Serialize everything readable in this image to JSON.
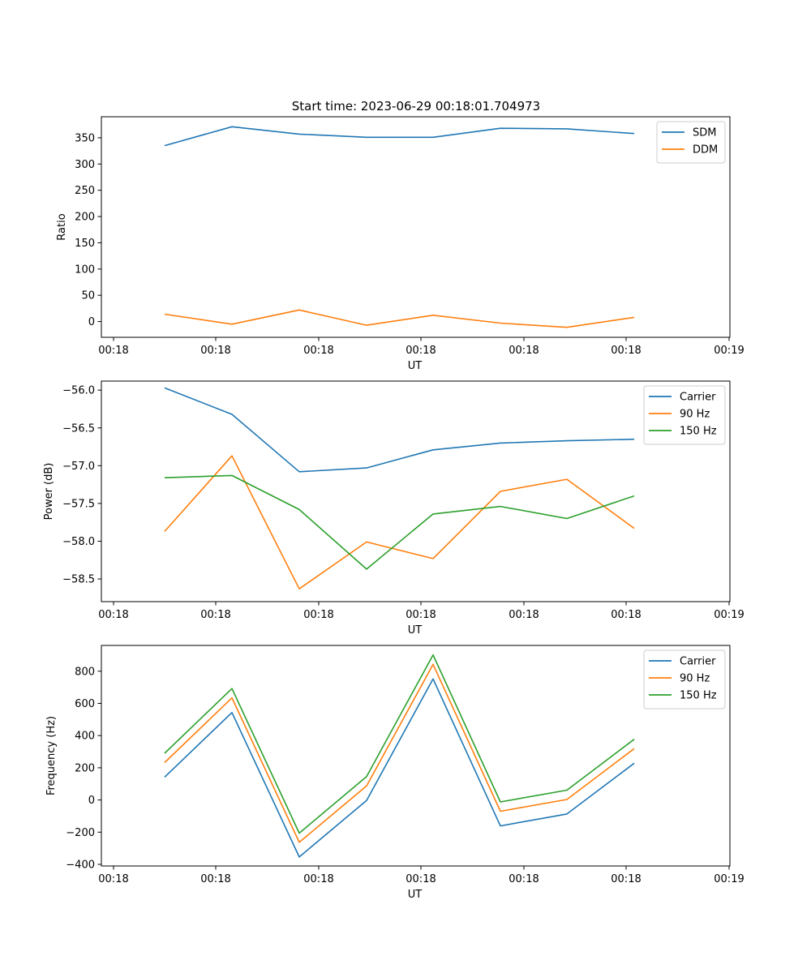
{
  "figure": {
    "title": "Start time: 2023-06-29 00:18:01.704973"
  },
  "colors": {
    "blue": "#1f77b4",
    "orange": "#ff7f0e",
    "green": "#2ca02c",
    "axes": "#000000",
    "legend_border": "#cccccc"
  },
  "chart_data": [
    {
      "type": "line",
      "title": "Start time: 2023-06-29 00:18:01.704973",
      "xlabel": "UT",
      "ylabel": "Ratio",
      "x_tick_labels": [
        "00:18",
        "00:18",
        "00:18",
        "00:18",
        "00:18",
        "00:18",
        "00:19"
      ],
      "y_ticks": [
        0,
        50,
        100,
        150,
        200,
        250,
        300,
        350
      ],
      "ylim": [
        -30,
        390
      ],
      "legend": "top-right",
      "grid": false,
      "series": [
        {
          "name": "SDM",
          "color": "#1f77b4",
          "values": [
            335,
            371,
            357,
            351,
            351,
            368,
            367,
            358
          ]
        },
        {
          "name": "DDM",
          "color": "#ff7f0e",
          "values": [
            14,
            -5,
            22,
            -7,
            12,
            -3,
            -11,
            8
          ]
        }
      ]
    },
    {
      "type": "line",
      "xlabel": "UT",
      "ylabel": "Power (dB)",
      "x_tick_labels": [
        "00:18",
        "00:18",
        "00:18",
        "00:18",
        "00:18",
        "00:18",
        "00:19"
      ],
      "y_ticks": [
        -58.5,
        -58.0,
        -57.5,
        -57.0,
        -56.5,
        -56.0
      ],
      "y_tick_labels": [
        "−58.5",
        "−58.0",
        "−57.5",
        "−57.0",
        "−56.5",
        "−56.0"
      ],
      "ylim": [
        -58.8,
        -55.88
      ],
      "legend": "top-right",
      "grid": false,
      "series": [
        {
          "name": "Carrier",
          "color": "#1f77b4",
          "values": [
            -55.97,
            -56.32,
            -57.08,
            -57.03,
            -56.79,
            -56.7,
            -56.67,
            -56.65
          ]
        },
        {
          "name": "90 Hz",
          "color": "#ff7f0e",
          "values": [
            -57.87,
            -56.87,
            -58.63,
            -58.01,
            -58.23,
            -57.34,
            -57.18,
            -57.83
          ]
        },
        {
          "name": "150 Hz",
          "color": "#2ca02c",
          "values": [
            -57.16,
            -57.13,
            -57.58,
            -58.37,
            -57.64,
            -57.54,
            -57.7,
            -57.4
          ]
        }
      ]
    },
    {
      "type": "line",
      "xlabel": "UT",
      "ylabel": "Frequency (Hz)",
      "x_tick_labels": [
        "00:18",
        "00:18",
        "00:18",
        "00:18",
        "00:18",
        "00:18",
        "00:19"
      ],
      "y_ticks": [
        -400,
        -200,
        0,
        200,
        400,
        600,
        800
      ],
      "y_tick_labels": [
        "−400",
        "−200",
        "0",
        "200",
        "400",
        "600",
        "800"
      ],
      "ylim": [
        -410,
        960
      ],
      "legend": "top-right",
      "grid": false,
      "series": [
        {
          "name": "Carrier",
          "color": "#1f77b4",
          "values": [
            142,
            543,
            -354,
            -3,
            752,
            -161,
            -87,
            228
          ]
        },
        {
          "name": "90 Hz",
          "color": "#ff7f0e",
          "values": [
            232,
            634,
            -263,
            87,
            842,
            -70,
            3,
            319
          ]
        },
        {
          "name": "150 Hz",
          "color": "#2ca02c",
          "values": [
            290,
            692,
            -206,
            145,
            901,
            -12,
            61,
            377
          ]
        }
      ]
    }
  ]
}
